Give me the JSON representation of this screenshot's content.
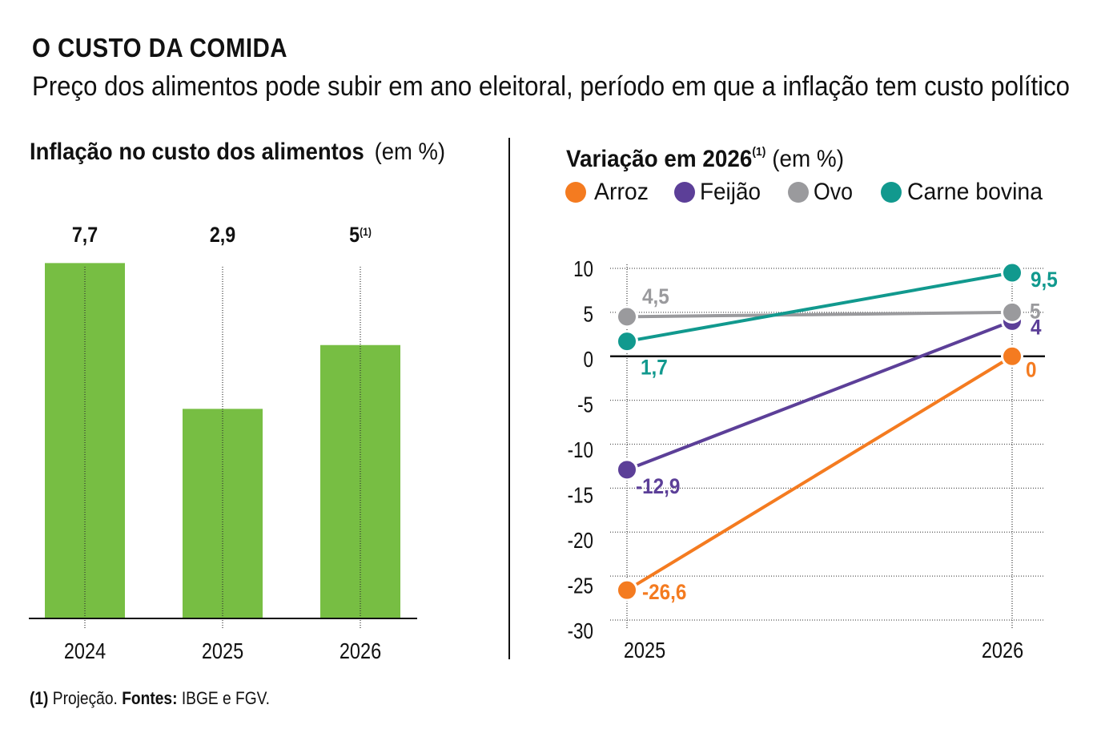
{
  "header": {
    "title": "O CUSTO DA COMIDA",
    "subtitle": "Preço dos alimentos pode subir em ano eleitoral, período em que a inflação tem custo político"
  },
  "chart_data": [
    {
      "type": "bar",
      "title": "Inflação no custo dos alimentos",
      "unit_note": "(em %)",
      "categories": [
        "2024",
        "2025",
        "2026"
      ],
      "values": [
        7.7,
        2.9,
        5
      ],
      "value_labels": [
        "7,7",
        "2,9",
        "5"
      ],
      "value_notes": [
        "",
        "",
        "(1)"
      ],
      "color": "#77BE43",
      "xlabel": "",
      "ylabel": "",
      "ylim": [
        -4,
        8
      ],
      "grid": false
    },
    {
      "type": "line",
      "title": "Variação em 2026",
      "title_note": "(1)",
      "unit_note": "(em %)",
      "x": [
        "2025",
        "2026"
      ],
      "series": [
        {
          "name": "Arroz",
          "color": "#F47B20",
          "values": [
            -26.6,
            0
          ],
          "labels": [
            "-26,6",
            "0"
          ]
        },
        {
          "name": "Feijão",
          "color": "#5C3F98",
          "values": [
            -12.9,
            4
          ],
          "labels": [
            "-12,9",
            "4"
          ]
        },
        {
          "name": "Ovo",
          "color": "#9A9A9D",
          "values": [
            4.5,
            5
          ],
          "labels": [
            "4,5",
            "5"
          ]
        },
        {
          "name": "Carne bovina",
          "color": "#11998E",
          "values": [
            1.7,
            9.5
          ],
          "labels": [
            "1,7",
            "9,5"
          ]
        }
      ],
      "yticks": [
        10,
        5,
        0,
        -5,
        -10,
        -15,
        -20,
        -25,
        -30
      ],
      "ytick_labels": [
        "10",
        "5",
        "0",
        "-5",
        "-10",
        "-15",
        "-20",
        "-25",
        "-30"
      ],
      "ylim": [
        -30,
        10
      ],
      "xlabel": "",
      "ylabel": "",
      "grid": true,
      "legend": "top"
    }
  ],
  "footnote": {
    "marker": "(1)",
    "note": "Projeção.",
    "sources_label": "Fontes:",
    "sources": "IBGE e FGV."
  }
}
